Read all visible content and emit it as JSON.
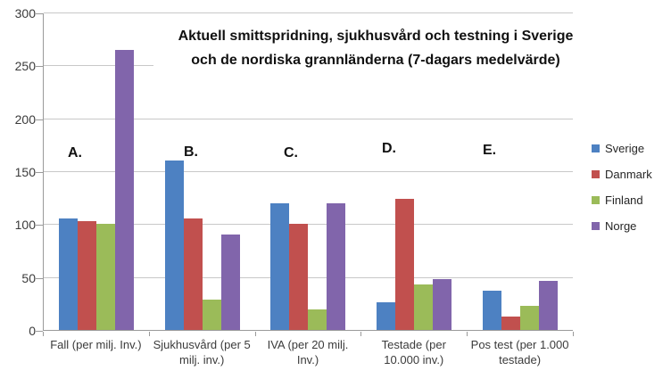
{
  "chart_data": {
    "type": "bar",
    "title": "Aktuell smittspridning, sjukhusvård och testning i Sverige och de nordiska grannländerna (7-dagars medelvärde)",
    "title_lines": [
      "Aktuell smittspridning, sjukhusvård och testning i Sverige",
      "och de nordiska grannländerna (7-dagars medelvärde)"
    ],
    "categories": [
      "Fall (per milj. Inv.)",
      "Sjukhusvård (per 5 milj. inv.)",
      "IVA (per 20 milj. Inv.)",
      "Testade (per 10.000 inv.)",
      "Pos test (per 1.000 testade)"
    ],
    "group_annotations": [
      "A.",
      "B.",
      "C.",
      "D.",
      "E."
    ],
    "series": [
      {
        "name": "Sverige",
        "color": "#4d81c2",
        "values": [
          105,
          160,
          120,
          26,
          37
        ]
      },
      {
        "name": "Danmark",
        "color": "#c1504e",
        "values": [
          103,
          105,
          100,
          124,
          13
        ]
      },
      {
        "name": "Finland",
        "color": "#9bbb59",
        "values": [
          100,
          29,
          19,
          43,
          23
        ]
      },
      {
        "name": "Norge",
        "color": "#8165ab",
        "values": [
          265,
          90,
          120,
          48,
          46
        ]
      }
    ],
    "y_ticks": [
      0,
      50,
      100,
      150,
      200,
      250,
      300
    ],
    "ylim": [
      0,
      300
    ],
    "grid": true,
    "legend_position": "right",
    "axis_color": "#9a9a9a",
    "gridline_color": "#c8c8c8"
  }
}
